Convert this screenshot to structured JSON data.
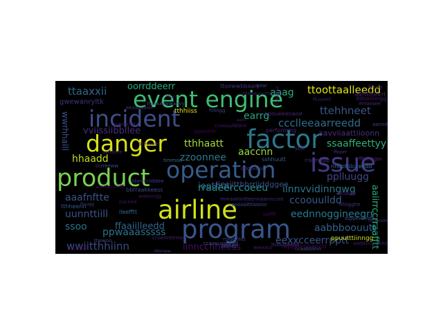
{
  "wordcloud": {
    "words": [
      {
        "text": "event engine",
        "color": "#3fbc73"
      },
      {
        "text": "incident",
        "color": "#3d4e8a"
      },
      {
        "text": "danger",
        "color": "#d7e219"
      },
      {
        "text": "factor",
        "color": "#2a788e"
      },
      {
        "text": "operation",
        "color": "#375b8d"
      },
      {
        "text": "issue",
        "color": "#443983"
      },
      {
        "text": "product",
        "color": "#7ad151"
      },
      {
        "text": "airline",
        "color": "#d0e11c"
      },
      {
        "text": "program",
        "color": "#3a548c"
      },
      {
        "text": "ttaaxxii",
        "color": "#31688e"
      },
      {
        "text": "oorrddeerr",
        "color": "#26ad81"
      },
      {
        "text": "aaag",
        "color": "#2ab07f"
      },
      {
        "text": "ttoottaalleedd",
        "color": "#dde318"
      },
      {
        "text": "ttehhneet",
        "color": "#38598c"
      },
      {
        "text": "ccclleeaarreedd",
        "color": "#2f6c8e"
      },
      {
        "text": "earrg",
        "color": "#22a884"
      },
      {
        "text": "tthhaatt",
        "color": "#a5db36"
      },
      {
        "text": "vviissiibbllee",
        "color": "#472d7b"
      },
      {
        "text": "ssaaffeettyy",
        "color": "#2db27d"
      },
      {
        "text": "hhaadd",
        "color": "#c2df23"
      },
      {
        "text": "zzoonnee",
        "color": "#297b8e"
      },
      {
        "text": "aaccnn",
        "color": "#9bd93c"
      },
      {
        "text": "pplluugg",
        "color": "#3f4788"
      },
      {
        "text": "aaafnftte",
        "color": "#3b528b"
      },
      {
        "text": "iinnvvidinngwg",
        "color": "#2a768e"
      },
      {
        "text": "ccoouulldd",
        "color": "#375a8c"
      },
      {
        "text": "uunnttiill",
        "color": "#3b528b"
      },
      {
        "text": "eednnoggineegrr",
        "color": "#297a8e"
      },
      {
        "text": "ssoo",
        "color": "#2c718e"
      },
      {
        "text": "ffaaiilleedd",
        "color": "#32658e"
      },
      {
        "text": "aabbboouutt",
        "color": "#34618d"
      },
      {
        "text": "ppwaaasssss",
        "color": "#2c738e"
      },
      {
        "text": "eexxcceerrpptt",
        "color": "#3b528b"
      },
      {
        "text": "wwiitthhiinn",
        "color": "#3d4d8a"
      },
      {
        "text": "iinncchheess",
        "color": "#471063"
      },
      {
        "text": "ioothuu",
        "color": "#365d8d"
      },
      {
        "text": "rraaeerccoeeu",
        "color": "#21918c"
      },
      {
        "text": "aaiirrccrraafftt",
        "color": "#2ab07f"
      },
      {
        "text": "gwewanryltk",
        "color": "#46327e"
      },
      {
        "text": "aaffttteerr",
        "color": "#481f70"
      },
      {
        "text": "aavviiaattiioonn",
        "color": "#46307e"
      },
      {
        "text": "ppuutttiinngg",
        "color": "#c8e020"
      },
      {
        "text": "tthhiiss",
        "color": "#dde318"
      },
      {
        "text": "wwrhhaill",
        "color": "#3b528b"
      },
      {
        "text": "ppoueeenaoe",
        "color": "#482475"
      },
      {
        "text": "oppeennaedd",
        "color": "#440154"
      },
      {
        "text": "ttoowwbbaarr",
        "color": "#46337f"
      },
      {
        "text": "performing",
        "color": "#482878"
      },
      {
        "text": "still",
        "color": "#472f7d"
      },
      {
        "text": "ddooiinngg",
        "color": "#481b6d"
      },
      {
        "text": "mnoosee",
        "color": "#472a7a"
      },
      {
        "text": "finally",
        "color": "#482576"
      },
      {
        "text": "pressure",
        "color": "#481467"
      },
      {
        "text": "turned",
        "color": "#440154"
      },
      {
        "text": "packed",
        "color": "#471365"
      },
      {
        "text": "gear",
        "color": "#3e4989"
      },
      {
        "text": "running",
        "color": "#482173"
      },
      {
        "text": "timmoo",
        "color": "#2d708e"
      },
      {
        "text": "sshhuutt",
        "color": "#355f8d"
      },
      {
        "text": "jjeeiittbbrriiddggee",
        "color": "#3d4e8a"
      },
      {
        "text": "tthheenn",
        "color": "#39568c"
      },
      {
        "text": "bbrraakkeess",
        "color": "#3e4a89"
      },
      {
        "text": "fillingg",
        "color": "#423f85"
      },
      {
        "text": "eexxaaiinn",
        "color": "#443a83"
      },
      {
        "text": "ccaabbiinn",
        "color": "#3c4f8a"
      },
      {
        "text": "ttooppeedd",
        "color": "#46337f"
      },
      {
        "text": "nnoottiicceedd",
        "color": "#2c728e"
      },
      {
        "text": "ttaaxxiiwwaayy",
        "color": "#3e4a89"
      },
      {
        "text": "mmaaiinntteennaannccee",
        "color": "#472d7b"
      },
      {
        "text": "aaddvviisseedd",
        "color": "#481d6f"
      },
      {
        "text": "ppoossiittiioonn",
        "color": "#3e4c8a"
      },
      {
        "text": "ccoonnttrrooll",
        "color": "#482677"
      },
      {
        "text": "bbeecciiddee",
        "color": "#433e85"
      },
      {
        "text": "ssttaarrtt",
        "color": "#471365"
      },
      {
        "text": "hhiigghh",
        "color": "#45337f"
      },
      {
        "text": "ssppeeeedd",
        "color": "#3f4788"
      },
      {
        "text": "lleefftt",
        "color": "#2f6b8e"
      },
      {
        "text": "rriigghhtt",
        "color": "#414487"
      },
      {
        "text": "ffuueell",
        "color": "#48186a"
      },
      {
        "text": "ddooeess",
        "color": "#463480"
      },
      {
        "text": "wwoouulldd",
        "color": "#46085c"
      },
      {
        "text": "ccoouullddnn",
        "color": "#481a6c"
      },
      {
        "text": "ffllaaggss",
        "color": "#472c7a"
      },
      {
        "text": "ccaauusseedd",
        "color": "#3b528b"
      },
      {
        "text": "ssiiddee",
        "color": "#482071"
      },
      {
        "text": "ffoorr",
        "color": "#453781"
      },
      {
        "text": "ttwwoo",
        "color": "#404688"
      },
      {
        "text": "ooffff",
        "color": "#46075a"
      },
      {
        "text": "aanndd",
        "color": "#423f85"
      },
      {
        "text": "ttoo",
        "color": "#481769"
      },
      {
        "text": "wwaass",
        "color": "#48186a"
      },
      {
        "text": "tthhee",
        "color": "#3f4889"
      },
      {
        "text": "wwiinngg",
        "color": "#471365"
      },
      {
        "text": "ffllaapp",
        "color": "#482374"
      },
      {
        "text": "ccrreeww",
        "color": "#3e4989"
      },
      {
        "text": "ggaattee",
        "color": "#450559"
      },
      {
        "text": "rraammpp",
        "color": "#472e7c"
      },
      {
        "text": "ddooww",
        "color": "#453581"
      },
      {
        "text": "aaiirr",
        "color": "#481c6e"
      },
      {
        "text": "hhooookk",
        "color": "#46307e"
      },
      {
        "text": "ttuugg",
        "color": "#404588"
      },
      {
        "text": "ddeeppaarrttuurree",
        "color": "#481f70"
      }
    ]
  }
}
